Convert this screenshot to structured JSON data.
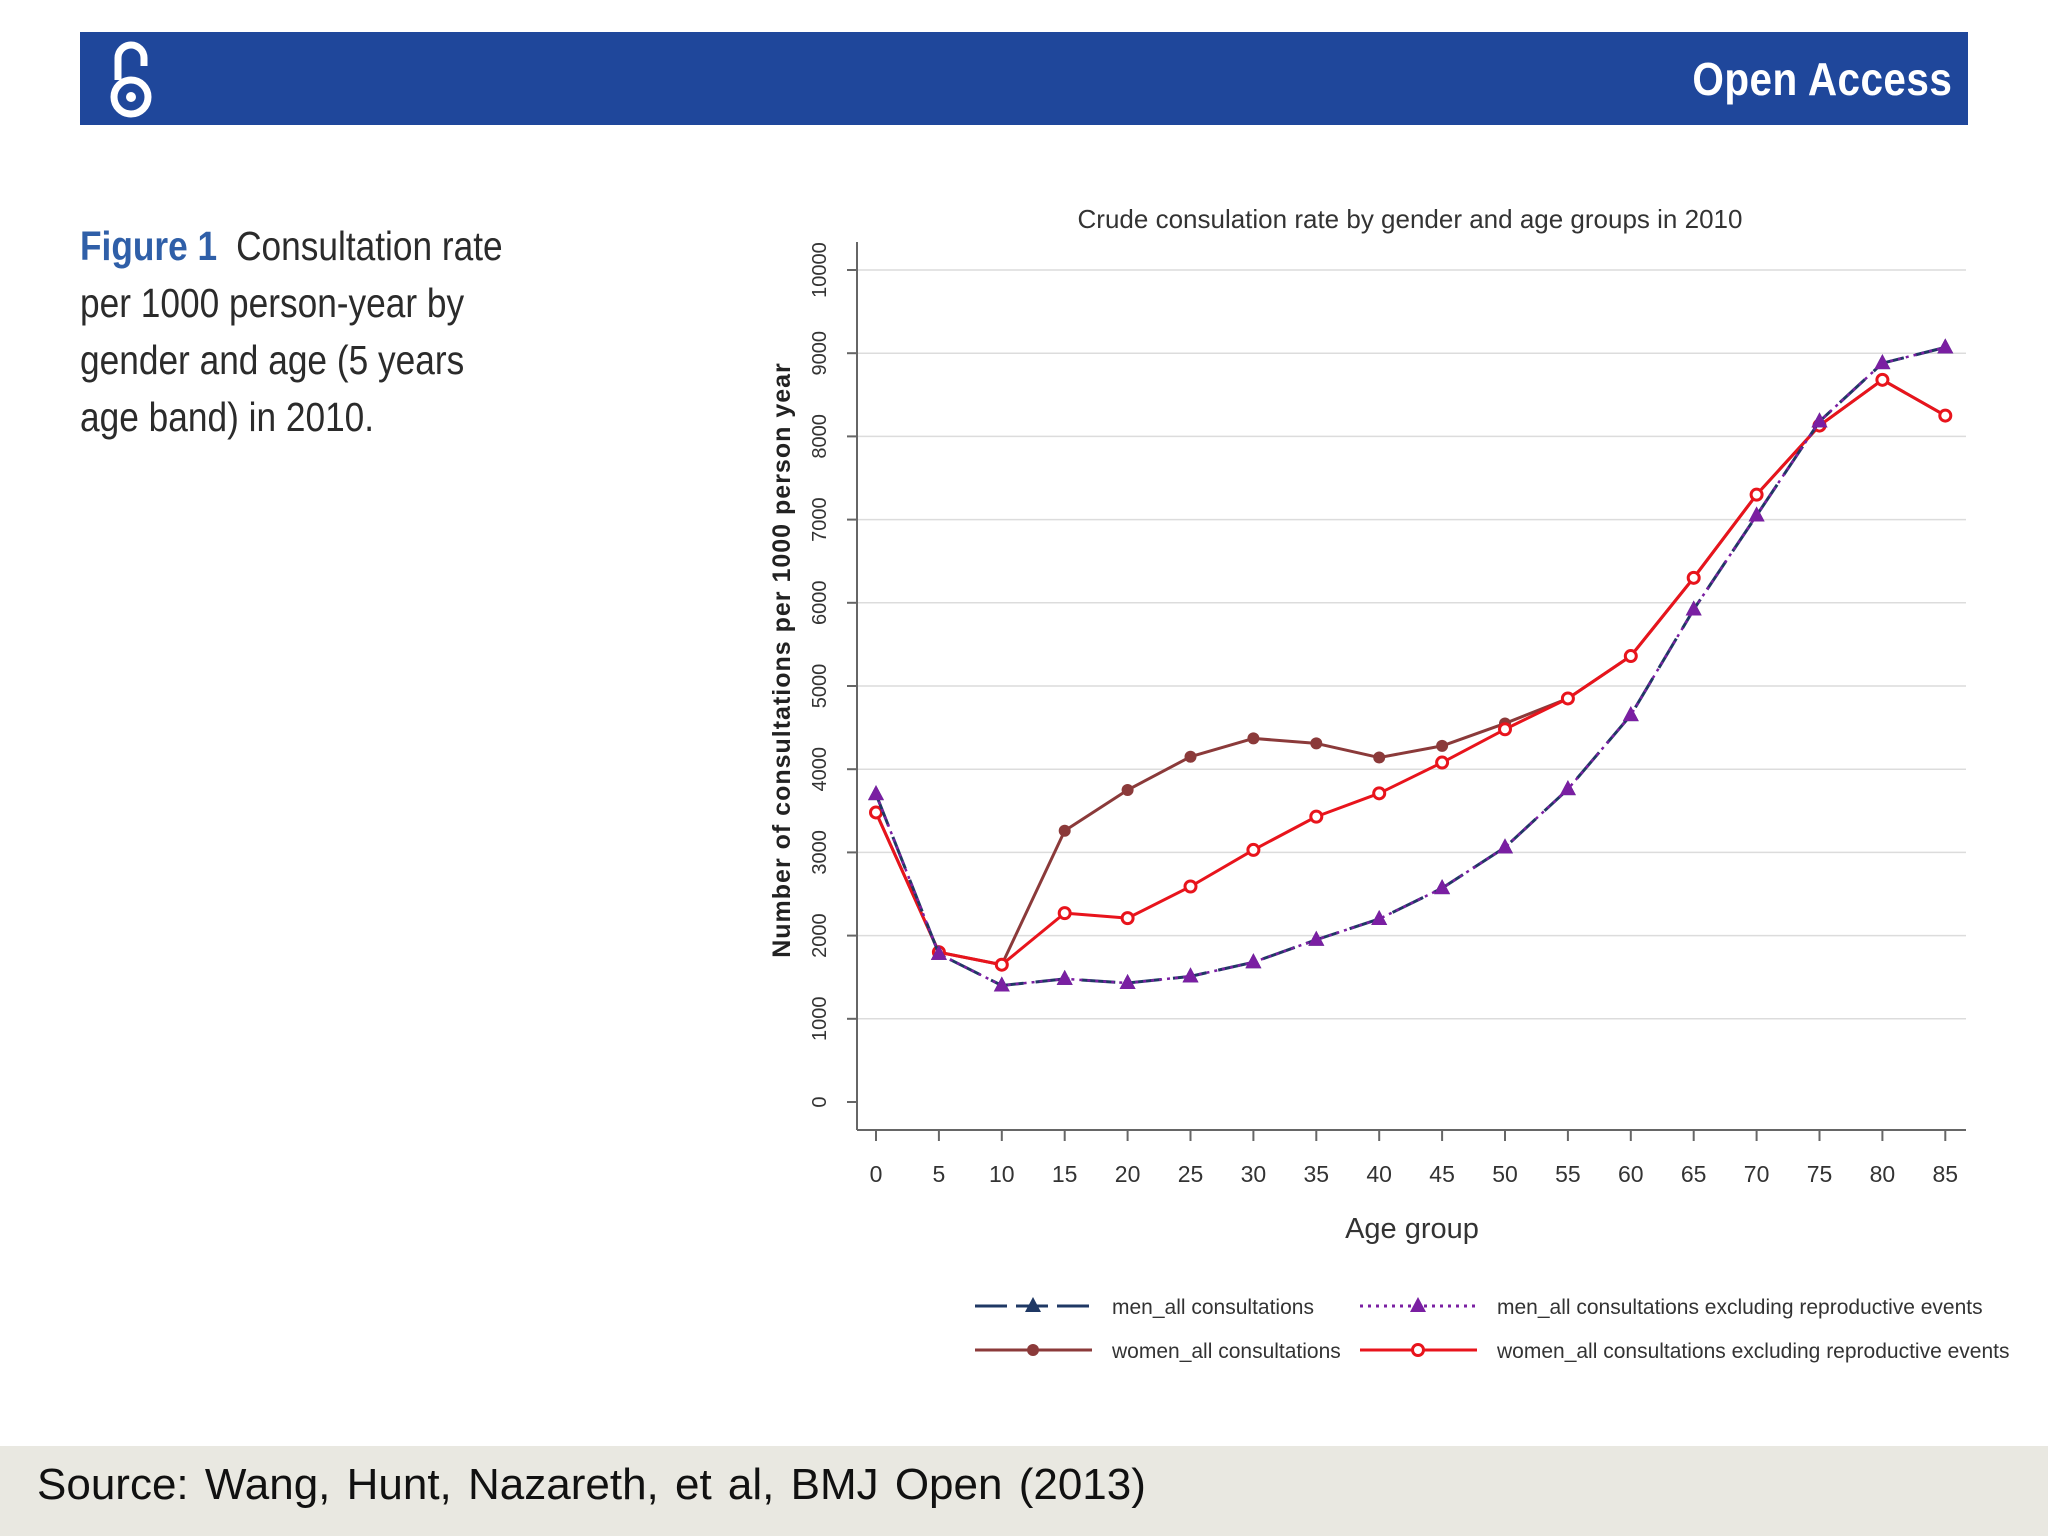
{
  "header": {
    "open_access_label": "Open Access",
    "icon": "open-access-lock-icon",
    "color": "#1f479b"
  },
  "caption": {
    "label": "Figure 1",
    "text": "Consultation rate per 1000 person-year by gender and age (5 years age band) in 2010."
  },
  "footer": {
    "source": "Source: Wang, Hunt, Nazareth, et al, BMJ Open (2013)"
  },
  "chart_data": {
    "type": "line",
    "title": "Crude consulation rate by gender and age groups in 2010",
    "xlabel": "Age group",
    "ylabel": "Number of consultations per 1000 person year",
    "x": [
      0,
      5,
      10,
      15,
      20,
      25,
      30,
      35,
      40,
      45,
      50,
      55,
      60,
      65,
      70,
      75,
      80,
      85
    ],
    "xticks": [
      "0",
      "5",
      "10",
      "15",
      "20",
      "25",
      "30",
      "35",
      "40",
      "45",
      "50",
      "55",
      "60",
      "65",
      "70",
      "75",
      "80",
      "85"
    ],
    "ylim": [
      0,
      10000
    ],
    "yticks": [
      "0",
      "1000",
      "2000",
      "3000",
      "4000",
      "5000",
      "6000",
      "7000",
      "8000",
      "9000",
      "10000"
    ],
    "grid": true,
    "legend_position": "bottom",
    "series": [
      {
        "name": "men_all consultations",
        "color": "#1f3864",
        "line": "longdash",
        "marker": "triangle",
        "values": [
          3700,
          1780,
          1400,
          1480,
          1430,
          1510,
          1680,
          1950,
          2200,
          2570,
          3060,
          3760,
          4650,
          5920,
          7050,
          8180,
          8880,
          9070
        ]
      },
      {
        "name": "men_all consultations excluding reproductive events",
        "color": "#7a1fa2",
        "line": "dotted",
        "marker": "triangle",
        "values": [
          3700,
          1780,
          1400,
          1480,
          1430,
          1510,
          1680,
          1950,
          2200,
          2570,
          3060,
          3760,
          4650,
          5920,
          7050,
          8180,
          8880,
          9070
        ]
      },
      {
        "name": "women_all consultations",
        "color": "#8b3a3a",
        "line": "solid",
        "marker": "circle",
        "values": [
          3480,
          1800,
          1650,
          3260,
          3750,
          4150,
          4370,
          4310,
          4140,
          4280,
          4550,
          4850,
          5360,
          6300,
          7300,
          8130,
          8680,
          8250
        ]
      },
      {
        "name": "women_all consultations excluding reproductive events",
        "color": "#e8141c",
        "line": "solid",
        "marker": "hollow-circle",
        "values": [
          3480,
          1800,
          1650,
          2270,
          2210,
          2590,
          3030,
          3430,
          3710,
          4080,
          4480,
          4850,
          5360,
          6300,
          7300,
          8130,
          8680,
          8250
        ]
      }
    ]
  }
}
